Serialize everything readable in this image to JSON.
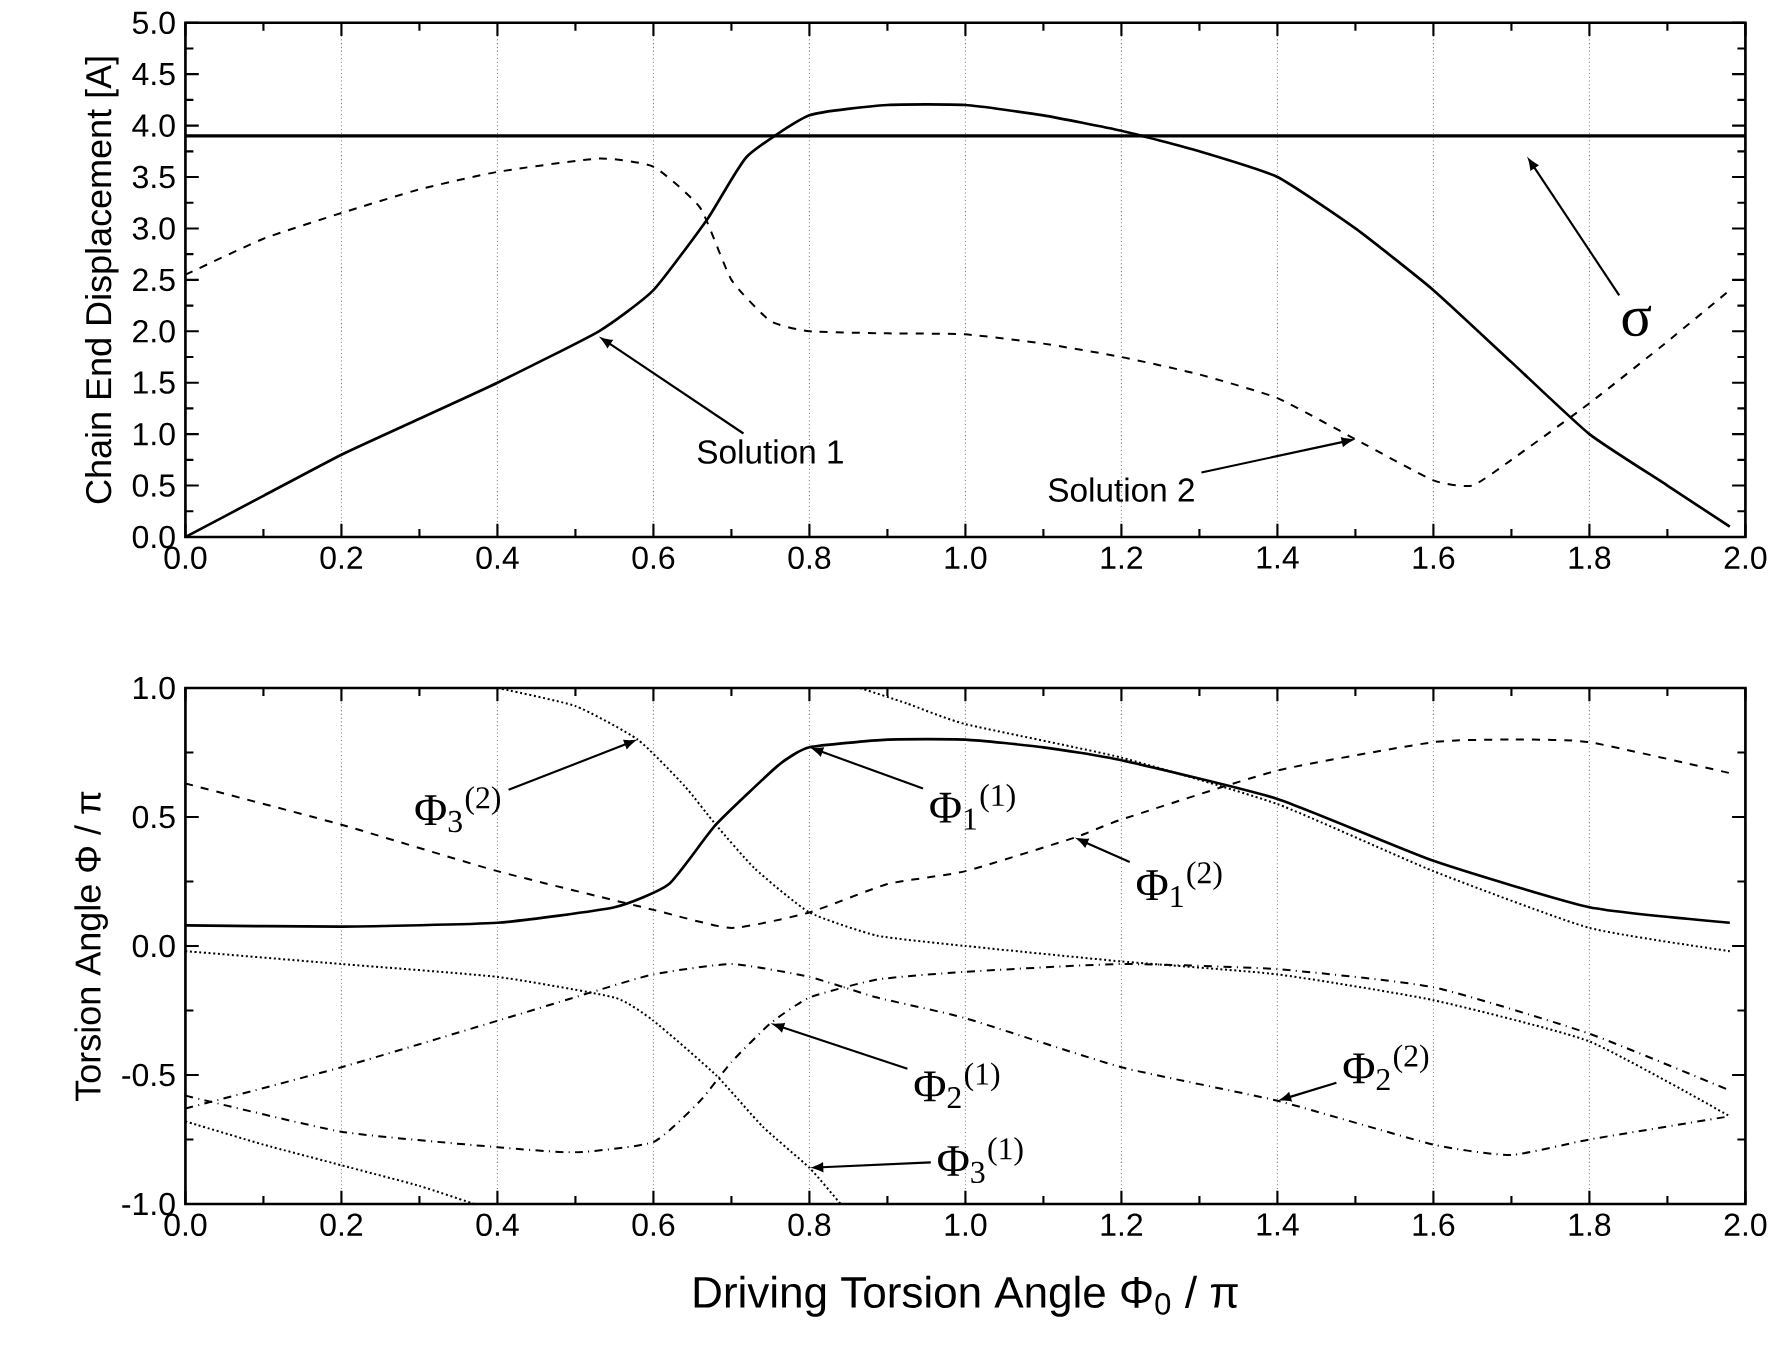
{
  "chart_data": [
    {
      "type": "line",
      "ylabel": "Chain End Displacement [A]",
      "xlim": [
        0,
        2
      ],
      "ylim": [
        0,
        5
      ],
      "xticks": [
        {
          "value": 0,
          "label": "0.0"
        },
        {
          "value": 0.2,
          "label": "0.2"
        },
        {
          "value": 0.4,
          "label": "0.4"
        },
        {
          "value": 0.6,
          "label": "0.6"
        },
        {
          "value": 0.8,
          "label": "0.8"
        },
        {
          "value": 1,
          "label": "1.0"
        },
        {
          "value": 1.2,
          "label": "1.2"
        },
        {
          "value": 1.4,
          "label": "1.4"
        },
        {
          "value": 1.6,
          "label": "1.6"
        },
        {
          "value": 1.8,
          "label": "1.8"
        },
        {
          "value": 2,
          "label": "2.0"
        }
      ],
      "yticks": [
        {
          "value": 0,
          "label": "0.0"
        },
        {
          "value": 0.5,
          "label": "0.5"
        },
        {
          "value": 1,
          "label": "1.0"
        },
        {
          "value": 1.5,
          "label": "1.5"
        },
        {
          "value": 2,
          "label": "2.0"
        },
        {
          "value": 2.5,
          "label": "2.5"
        },
        {
          "value": 3,
          "label": "3.0"
        },
        {
          "value": 3.5,
          "label": "3.5"
        },
        {
          "value": 4,
          "label": "4.0"
        },
        {
          "value": 4.5,
          "label": "4.5"
        },
        {
          "value": 5,
          "label": "5.0"
        }
      ],
      "grid": "x",
      "series": [
        {
          "color": "#000000",
          "line_style": "solid",
          "x": [
            0,
            0.1,
            0.2,
            0.3,
            0.4,
            0.53,
            0.6,
            0.67,
            0.72,
            0.8,
            0.9,
            1.0,
            1.1,
            1.2,
            1.3,
            1.4,
            1.5,
            1.6,
            1.7,
            1.8,
            1.9,
            1.98
          ],
          "values": [
            0,
            0.4,
            0.8,
            1.15,
            1.5,
            2.0,
            2.4,
            3.1,
            3.7,
            4.1,
            4.2,
            4.2,
            4.1,
            3.95,
            3.75,
            3.5,
            3.0,
            2.4,
            1.7,
            1.0,
            0.5,
            0.1
          ]
        },
        {
          "color": "#000000",
          "line_style": "dashed",
          "x": [
            0,
            0.1,
            0.2,
            0.3,
            0.4,
            0.53,
            0.6,
            0.66,
            0.7,
            0.75,
            0.8,
            0.9,
            1.0,
            1.1,
            1.2,
            1.3,
            1.4,
            1.5,
            1.6,
            1.65,
            1.7,
            1.8,
            1.9,
            1.98
          ],
          "values": [
            2.55,
            2.9,
            3.15,
            3.38,
            3.55,
            3.68,
            3.6,
            3.2,
            2.5,
            2.1,
            2.0,
            1.98,
            1.97,
            1.88,
            1.75,
            1.58,
            1.35,
            0.95,
            0.55,
            0.5,
            0.75,
            1.3,
            1.9,
            2.4
          ]
        }
      ],
      "ref_lines": [
        {
          "axis": "y",
          "value": 3.9,
          "label": "σ"
        }
      ],
      "annotations": [
        {
          "text": "Solution 1",
          "x": 0.53,
          "y": 1.95
        },
        {
          "text": "Solution 2",
          "x": 1.5,
          "y": 0.95
        }
      ]
    },
    {
      "type": "line",
      "xlabel": "Driving Torsion Angle Φ$_{0}$ / π",
      "ylabel": "Torsion Angle Φ / π",
      "xlim": [
        0,
        2
      ],
      "ylim": [
        -1,
        1
      ],
      "xticks": [
        {
          "value": 0,
          "label": "0.0"
        },
        {
          "value": 0.2,
          "label": "0.2"
        },
        {
          "value": 0.4,
          "label": "0.4"
        },
        {
          "value": 0.6,
          "label": "0.6"
        },
        {
          "value": 0.8,
          "label": "0.8"
        },
        {
          "value": 1,
          "label": "1.0"
        },
        {
          "value": 1.2,
          "label": "1.2"
        },
        {
          "value": 1.4,
          "label": "1.4"
        },
        {
          "value": 1.6,
          "label": "1.6"
        },
        {
          "value": 1.8,
          "label": "1.8"
        },
        {
          "value": 2,
          "label": "2.0"
        }
      ],
      "yticks": [
        {
          "value": -1,
          "label": "-1.0"
        },
        {
          "value": -0.5,
          "label": "-0.5"
        },
        {
          "value": 0,
          "label": "0.0"
        },
        {
          "value": 0.5,
          "label": "0.5"
        },
        {
          "value": 1,
          "label": "1.0"
        }
      ],
      "grid": "x",
      "series": [
        {
          "color": "#000000",
          "line_style": "solid",
          "x": [
            0,
            0.2,
            0.4,
            0.55,
            0.62,
            0.68,
            0.76,
            0.8,
            0.9,
            1.0,
            1.1,
            1.2,
            1.4,
            1.6,
            1.8,
            1.98
          ],
          "values": [
            0.08,
            0.075,
            0.09,
            0.15,
            0.24,
            0.47,
            0.7,
            0.77,
            0.8,
            0.8,
            0.77,
            0.72,
            0.57,
            0.33,
            0.15,
            0.09
          ]
        },
        {
          "color": "#000000",
          "line_style": "dashed",
          "x": [
            0,
            0.2,
            0.4,
            0.6,
            0.7,
            0.8,
            0.9,
            1.0,
            1.14,
            1.2,
            1.4,
            1.6,
            1.7,
            1.8,
            1.98
          ],
          "values": [
            0.63,
            0.47,
            0.29,
            0.14,
            0.07,
            0.13,
            0.24,
            0.29,
            0.42,
            0.49,
            0.68,
            0.79,
            0.8,
            0.79,
            0.67
          ]
        },
        {
          "color": "#000000",
          "line_style": "dashdotted",
          "x": [
            0,
            0.2,
            0.4,
            0.5,
            0.6,
            0.66,
            0.7,
            0.75,
            0.8,
            0.887,
            1.0,
            1.2,
            1.4,
            1.6,
            1.8,
            1.98
          ],
          "values": [
            -0.58,
            -0.72,
            -0.78,
            -0.8,
            -0.76,
            -0.6,
            -0.45,
            -0.3,
            -0.2,
            -0.13,
            -0.1,
            -0.07,
            -0.09,
            -0.16,
            -0.34,
            -0.56
          ]
        },
        {
          "color": "#000000",
          "line_style": "dashdotted",
          "x": [
            0,
            0.2,
            0.4,
            0.52,
            0.6,
            0.7,
            0.8,
            0.887,
            1.0,
            1.2,
            1.4,
            1.6,
            1.7,
            1.8,
            1.98
          ],
          "values": [
            -0.63,
            -0.47,
            -0.29,
            -0.18,
            -0.11,
            -0.07,
            -0.12,
            -0.2,
            -0.28,
            -0.47,
            -0.6,
            -0.77,
            -0.81,
            -0.75,
            -0.66
          ]
        },
        {
          "color": "#000000",
          "line_style": "dotted",
          "x": [
            0,
            0.2,
            0.4,
            0.55,
            0.6,
            0.68,
            0.74,
            0.8,
            0.84,
            0.85,
            0.865,
            0.925,
            1.0,
            1.2,
            1.4,
            1.6,
            1.8,
            1.98
          ],
          "values": [
            -0.02,
            -0.07,
            -0.12,
            -0.2,
            -0.29,
            -0.5,
            -0.7,
            -0.86,
            -1.0,
            null,
            1.0,
            0.94,
            0.86,
            0.73,
            0.55,
            0.29,
            0.07,
            -0.02
          ]
        },
        {
          "color": "#000000",
          "line_style": "dotted",
          "x": [
            0,
            0.1,
            0.2,
            0.3,
            0.37,
            0.385,
            0.4,
            0.5,
            0.58,
            0.64,
            0.68,
            0.73,
            0.8,
            0.887,
            1.0,
            1.2,
            1.4,
            1.6,
            1.8,
            1.98
          ],
          "values": [
            -0.68,
            -0.77,
            -0.85,
            -0.93,
            -1.0,
            null,
            1.0,
            0.93,
            0.8,
            0.62,
            0.47,
            0.3,
            0.13,
            0.04,
            0.0,
            -0.06,
            -0.11,
            -0.21,
            -0.37,
            -0.66
          ]
        }
      ],
      "annotations": [
        {
          "text": "Φ$_{3}$$^{(2)}$",
          "x": 0.58,
          "y": 0.8
        },
        {
          "text": "Φ$_{1}$$^{(1)}$",
          "x": 0.8,
          "y": 0.77
        },
        {
          "text": "Φ$_{1}$$^{(2)}$",
          "x": 1.14,
          "y": 0.42
        },
        {
          "text": "Φ$_{2}$$^{(1)}$",
          "x": 0.75,
          "y": -0.3
        },
        {
          "text": "Φ$_{2}$$^{(2)}$",
          "x": 1.4,
          "y": -0.6
        },
        {
          "text": "Φ$_{3}$$^{(1)}$",
          "x": 0.8,
          "y": -0.86
        }
      ]
    }
  ]
}
